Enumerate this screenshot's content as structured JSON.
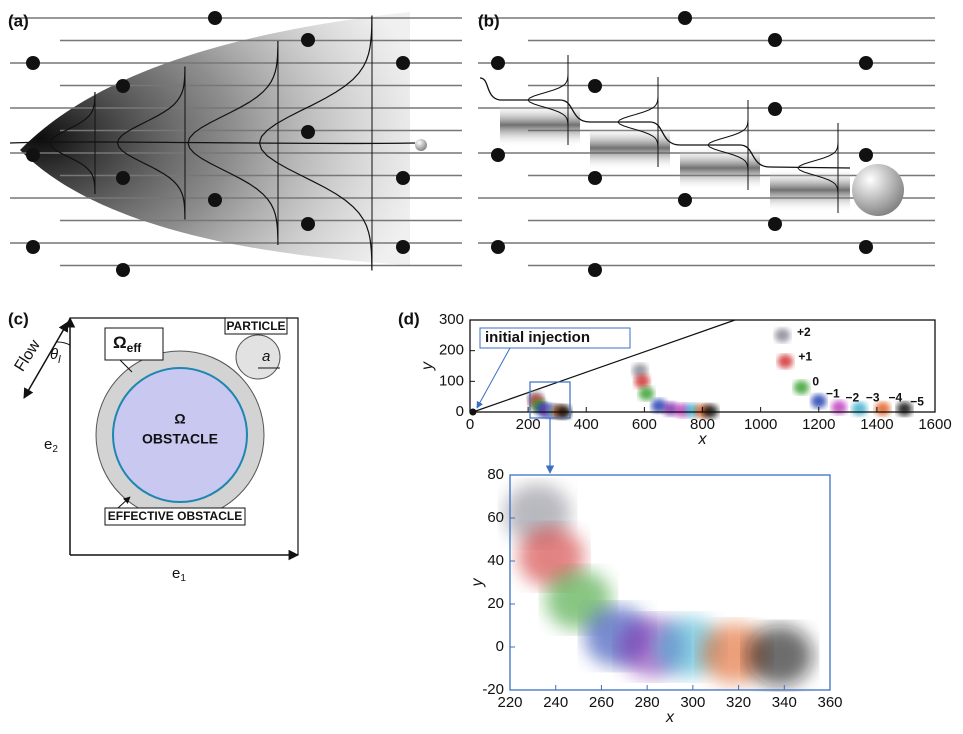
{
  "panels": {
    "a": {
      "label": "(a)"
    },
    "b": {
      "label": "(b)"
    },
    "c": {
      "label": "(c)",
      "flow": "Flow",
      "theta": "θ",
      "theta_sub": "l",
      "omega_eff": "Ω",
      "omega_eff_sub": "eff",
      "particle": "PARTICLE",
      "radius": "a",
      "omega": "Ω",
      "obstacle": "OBSTACLE",
      "effective": "EFFECTIVE OBSTACLE",
      "e2": "e",
      "e2_sub": "2",
      "e1": "e",
      "e1_sub": "1"
    },
    "d": {
      "label": "(d)"
    }
  },
  "chart_data": [
    {
      "type": "scatter",
      "xlabel": "x",
      "ylabel": "y",
      "xlim": [
        0,
        1600
      ],
      "xticks": [
        0,
        200,
        400,
        600,
        800,
        1000,
        1200,
        1400,
        1600
      ],
      "ylim": [
        0,
        300
      ],
      "yticks": [
        0,
        100,
        200,
        300
      ],
      "injection": {
        "text": "initial injection",
        "x": 10,
        "y": 0
      },
      "clusters": [
        {
          "x": 225,
          "y": 45,
          "color": "#8a8a95"
        },
        {
          "x": 228,
          "y": 33,
          "color": "#d03030"
        },
        {
          "x": 236,
          "y": 20,
          "color": "#3aa030"
        },
        {
          "x": 252,
          "y": 8,
          "color": "#2040b0"
        },
        {
          "x": 270,
          "y": 3,
          "color": "#8030b0"
        },
        {
          "x": 290,
          "y": 2,
          "color": "#40b0d0"
        },
        {
          "x": 306,
          "y": 1,
          "color": "#e06020"
        },
        {
          "x": 322,
          "y": 0,
          "color": "#111111"
        },
        {
          "x": 585,
          "y": 135,
          "color": "#8a8a95"
        },
        {
          "x": 592,
          "y": 100,
          "color": "#d03030"
        },
        {
          "x": 607,
          "y": 60,
          "color": "#3aa030"
        },
        {
          "x": 650,
          "y": 20,
          "color": "#2040b0"
        },
        {
          "x": 690,
          "y": 10,
          "color": "#8030b0"
        },
        {
          "x": 730,
          "y": 5,
          "color": "#c040c0"
        },
        {
          "x": 765,
          "y": 5,
          "color": "#40b0d0"
        },
        {
          "x": 800,
          "y": 3,
          "color": "#e06020"
        },
        {
          "x": 827,
          "y": 2,
          "color": "#111111"
        },
        {
          "x": 1075,
          "y": 250,
          "color": "#8a8a95"
        },
        {
          "x": 1085,
          "y": 165,
          "color": "#d03030"
        },
        {
          "x": 1140,
          "y": 80,
          "color": "#3aa030"
        },
        {
          "x": 1200,
          "y": 35,
          "color": "#2040b0"
        },
        {
          "x": 1270,
          "y": 15,
          "color": "#c040c0"
        },
        {
          "x": 1340,
          "y": 10,
          "color": "#40b0d0"
        },
        {
          "x": 1420,
          "y": 10,
          "color": "#e06020"
        },
        {
          "x": 1495,
          "y": 10,
          "color": "#111111"
        }
      ],
      "annotations": [
        {
          "text": "+2",
          "x": 1125,
          "y": 258
        },
        {
          "text": "+1",
          "x": 1130,
          "y": 178
        },
        {
          "text": "0",
          "x": 1178,
          "y": 97
        },
        {
          "text": "−1",
          "x": 1225,
          "y": 58
        },
        {
          "text": "−2",
          "x": 1292,
          "y": 45
        },
        {
          "text": "−3",
          "x": 1362,
          "y": 45
        },
        {
          "text": "−4",
          "x": 1440,
          "y": 45
        },
        {
          "text": "−5",
          "x": 1515,
          "y": 32
        }
      ]
    },
    {
      "type": "scatter",
      "xlabel": "x",
      "ylabel": "y",
      "xlim": [
        220,
        360
      ],
      "xticks": [
        220,
        240,
        260,
        280,
        300,
        320,
        340,
        360
      ],
      "ylim": [
        -20,
        80
      ],
      "yticks": [
        -20,
        0,
        20,
        40,
        60,
        80
      ],
      "clusters": [
        {
          "x": 232,
          "y": 62,
          "color": "#8a8a95"
        },
        {
          "x": 238,
          "y": 42,
          "color": "#d03030"
        },
        {
          "x": 250,
          "y": 22,
          "color": "#3aa030"
        },
        {
          "x": 267,
          "y": 5,
          "color": "#2040b0"
        },
        {
          "x": 282,
          "y": 0,
          "color": "#8030b0"
        },
        {
          "x": 298,
          "y": 0,
          "color": "#40b0d0"
        },
        {
          "x": 318,
          "y": -3,
          "color": "#e06020"
        },
        {
          "x": 338,
          "y": -4,
          "color": "#111111"
        }
      ]
    }
  ]
}
